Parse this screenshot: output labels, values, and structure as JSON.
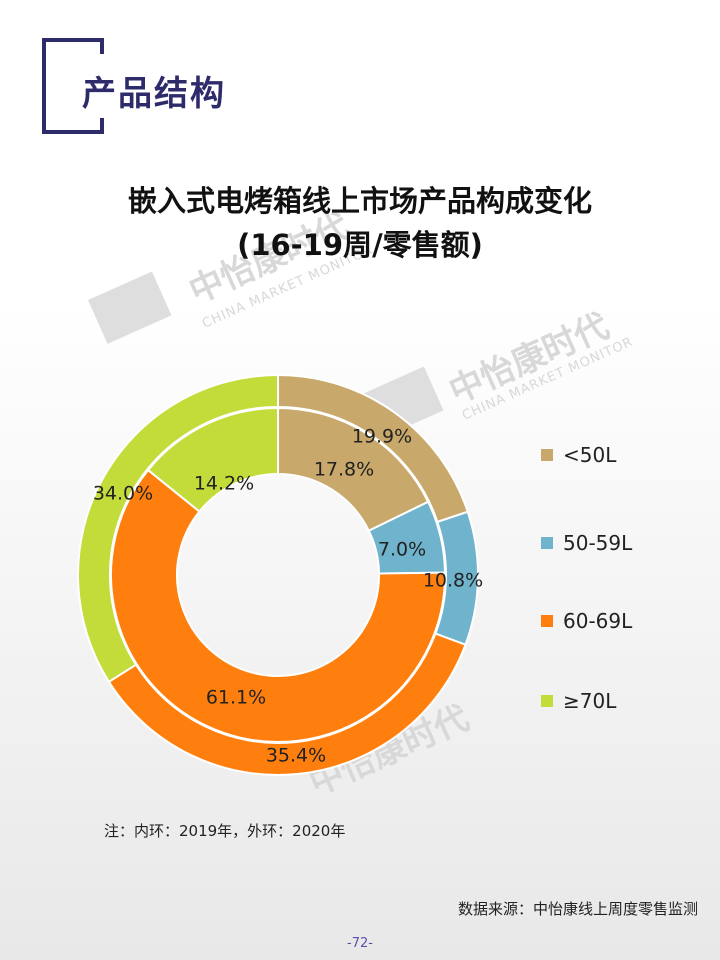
{
  "header": {
    "title": "产品结构"
  },
  "watermark": {
    "brand": "中怡康时代",
    "sub": "CHINA MARKET MONITOR",
    "logo": "CMM"
  },
  "chart_data": {
    "type": "pie",
    "variant": "double-donut",
    "title": "嵌入式电烤箱线上市场产品构成变化",
    "subtitle": "(16-19周/零售额)",
    "categories": [
      "<50L",
      "50-59L",
      "60-69L",
      "≥70L"
    ],
    "colors": [
      "#c8a86b",
      "#6fb4cc",
      "#ff7f0e",
      "#c4dc3a"
    ],
    "series": [
      {
        "ring": "outer",
        "values": [
          19.9,
          10.8,
          35.4,
          34.0
        ],
        "labels": [
          "19.9%",
          "10.8%",
          "35.4%",
          "34.0%"
        ]
      },
      {
        "ring": "inner",
        "values": [
          17.8,
          7.0,
          61.1,
          14.2
        ],
        "labels": [
          "17.8%",
          "7.0%",
          "61.1%",
          "14.2%"
        ]
      }
    ],
    "legend_position": "right"
  },
  "note": "注：内环：2019年，外环：2020年",
  "source": "数据来源：中怡康线上周度零售监测",
  "page_number": "-72-"
}
